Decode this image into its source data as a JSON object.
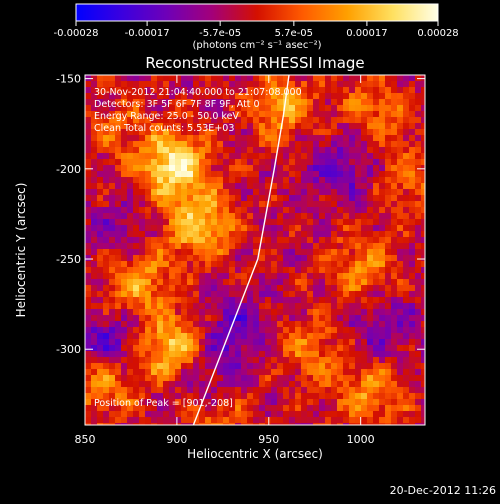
{
  "colorbar": {
    "tick_labels": [
      "-0.00028",
      "-0.00017",
      "-5.7e-05",
      "5.7e-05",
      "0.00017",
      "0.00028"
    ],
    "units_label": "(photons cm⁻² s⁻¹ asec⁻²)",
    "min": -0.00028,
    "max": 0.00028,
    "stops": [
      "#0000ff",
      "#3a00e0",
      "#6e00b8",
      "#a3007a",
      "#d41000",
      "#ff5a00",
      "#ffa000",
      "#ffe060",
      "#ffffe8"
    ]
  },
  "chart_data": {
    "type": "heatmap",
    "title": "Reconstructed RHESSI Image",
    "xlabel": "Heliocentric X (arcsec)",
    "ylabel": "Heliocentric Y (arcsec)",
    "xlim": [
      850,
      1035
    ],
    "ylim": [
      -342,
      -148
    ],
    "x_ticks": [
      850,
      900,
      950,
      1000
    ],
    "x_tick_labels": [
      "850",
      "900",
      "950",
      "1000"
    ],
    "y_ticks": [
      -150,
      -200,
      -250,
      -300
    ],
    "y_tick_labels": [
      "-150",
      "-200",
      "-250",
      "-300"
    ],
    "annotations": [
      "30-Nov-2012 21:04:40.000 to 21:07:08.000",
      "Detectors: 3F 5F 6F 7F 8F 9F, Att 0",
      "Energy Range: 25.0 - 50.0 keV",
      "Clean     Total counts: 5.53E+03"
    ],
    "peak_label": "Position of Peak = [901,-208]",
    "peak": [
      901,
      -208
    ],
    "limb_line": [
      [
        909,
        -342
      ],
      [
        925,
        -300
      ],
      [
        944,
        -250
      ],
      [
        953,
        -200
      ],
      [
        958,
        -170
      ],
      [
        961,
        -148
      ]
    ],
    "emission_sources": [
      {
        "x": 898,
        "y": -198,
        "value": 0.00028
      },
      {
        "x": 912,
        "y": -232,
        "value": 0.00022
      },
      {
        "x": 878,
        "y": -262,
        "value": 0.00018
      },
      {
        "x": 898,
        "y": -300,
        "value": 0.00024
      },
      {
        "x": 860,
        "y": -318,
        "value": 0.00016
      },
      {
        "x": 958,
        "y": -165,
        "value": 0.00017
      },
      {
        "x": 1008,
        "y": -168,
        "value": 0.00012
      },
      {
        "x": 1025,
        "y": -205,
        "value": 0.0001
      },
      {
        "x": 1000,
        "y": -255,
        "value": 0.00014
      },
      {
        "x": 972,
        "y": -300,
        "value": 0.00012
      },
      {
        "x": 1005,
        "y": -325,
        "value": 0.00015
      },
      {
        "x": 920,
        "y": -335,
        "value": 0.00013
      },
      {
        "x": 868,
        "y": -178,
        "value": 8e-05
      }
    ],
    "absorption_sources": [
      {
        "x": 930,
        "y": -290,
        "value": -0.00012
      },
      {
        "x": 915,
        "y": -318,
        "value": -0.00014
      },
      {
        "x": 862,
        "y": -298,
        "value": -0.00015
      },
      {
        "x": 990,
        "y": -198,
        "value": -0.00012
      },
      {
        "x": 1012,
        "y": -288,
        "value": -0.0001
      },
      {
        "x": 870,
        "y": -235,
        "value": -8e-05
      }
    ]
  },
  "footer": {
    "timestamp": "20-Dec-2012 11:26"
  }
}
